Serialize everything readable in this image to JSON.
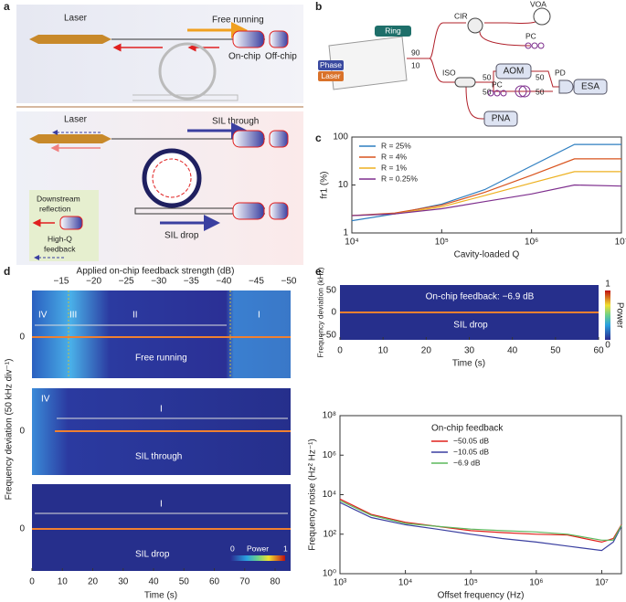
{
  "panel_labels": [
    "a",
    "b",
    "c",
    "d",
    "e"
  ],
  "panel_a": {
    "laser_top": "Laser",
    "free_running": "Free running",
    "on_chip": "On-chip",
    "off_chip": "Off-chip",
    "laser_bottom": "Laser",
    "sil_through": "SIL through",
    "sil_drop": "SIL drop",
    "inset": [
      "Downstream",
      "reflection",
      "High-Q",
      "feedback"
    ]
  },
  "panel_b": {
    "ring": "Ring",
    "phase": "Phase",
    "laser": "Laser",
    "split_90": "90",
    "split_10": "10",
    "cir": "CIR",
    "voa": "VOA",
    "pc_top": "PC",
    "iso": "ISO",
    "c1_50a": "50",
    "c1_50b": "50",
    "aom": "AOM",
    "pc_bottom": "PC",
    "c2_50a": "50",
    "c2_50b": "50",
    "pd": "PD",
    "esa": "ESA",
    "pna": "PNA"
  },
  "panel_d": {
    "top_axis_label": "Applied on-chip feedback strength (dB)",
    "top_ticks": [
      "−15",
      "−20",
      "−25",
      "−30",
      "−35",
      "−40",
      "−45",
      "−50"
    ],
    "regions_1": [
      "IV",
      "III",
      "II",
      "I"
    ],
    "regions_2": [
      "IV",
      "I"
    ],
    "regions_3": [
      "I"
    ],
    "zero": "0",
    "titles": [
      "Free running",
      "SIL through",
      "SIL drop"
    ],
    "y_label": "Frequency deviation (50 kHz div⁻¹)",
    "x_label": "Time (s)",
    "x_ticks": [
      "0",
      "10",
      "20",
      "30",
      "40",
      "50",
      "60",
      "70",
      "80"
    ],
    "colorbar": {
      "min": "0",
      "label": "Power",
      "max": "1"
    }
  },
  "panel_e_top": {
    "annotation": "On-chip feedback: −6.9 dB",
    "title": "SIL drop",
    "y_label": "Frequency deviation (kHz)",
    "y_ticks": [
      "50",
      "0",
      "−50"
    ],
    "x_label": "Time (s)",
    "x_ticks": [
      "0",
      "10",
      "20",
      "30",
      "40",
      "50",
      "60"
    ],
    "colorbar": {
      "max": "1",
      "label": "Power",
      "min": "0"
    }
  },
  "chart_data": [
    {
      "type": "line",
      "xscale": "log",
      "yscale": "log",
      "x_label": "Cavity-loaded Q",
      "y_label": "fr1 (%)",
      "x": [
        10000,
        30000,
        100000,
        300000,
        1000000,
        3000000,
        10000000
      ],
      "xlim": [
        10000,
        10000000
      ],
      "ylim": [
        1,
        100
      ],
      "xticks": [
        {
          "value": 10000,
          "label": "10⁴"
        },
        {
          "value": 100000,
          "label": "10⁵"
        },
        {
          "value": 1000000,
          "label": "10⁶"
        },
        {
          "value": 10000000,
          "label": "10⁷"
        }
      ],
      "yticks": [
        1,
        10,
        100
      ],
      "series": [
        {
          "name": "R = 25%",
          "color": "#2f7fc1",
          "values": [
            1.8,
            2.5,
            4,
            8,
            25,
            70,
            70
          ]
        },
        {
          "name": "R = 4%",
          "color": "#d9541e",
          "values": [
            2.3,
            2.6,
            3.8,
            7,
            16,
            35,
            35
          ]
        },
        {
          "name": "R = 1%",
          "color": "#edb120",
          "values": [
            2.3,
            2.5,
            3.5,
            6,
            11,
            19,
            19
          ]
        },
        {
          "name": "R = 0.25%",
          "color": "#7e2f8e",
          "values": [
            2.3,
            2.5,
            3.2,
            4.5,
            6.5,
            10,
            9.5
          ]
        }
      ]
    },
    {
      "type": "line",
      "xscale": "log",
      "yscale": "log",
      "x_label": "Offset frequency (Hz)",
      "y_label": "Frequency noise (Hz² Hz⁻¹)",
      "legend_title": "On-chip feedback",
      "x": [
        1000,
        3000,
        10000,
        30000,
        100000,
        300000,
        1000000,
        3000000,
        10000000,
        15000000,
        20000000
      ],
      "xlim": [
        1000,
        20000000
      ],
      "ylim": [
        1,
        100000000
      ],
      "xticks": [
        {
          "value": 1000,
          "label": "10³"
        },
        {
          "value": 10000,
          "label": "10⁴"
        },
        {
          "value": 100000,
          "label": "10⁵"
        },
        {
          "value": 1000000,
          "label": "10⁶"
        },
        {
          "value": 10000000,
          "label": "10⁷"
        }
      ],
      "yticks": [
        {
          "value": 1,
          "label": "10⁰"
        },
        {
          "value": 100,
          "label": "10²"
        },
        {
          "value": 10000,
          "label": "10⁴"
        },
        {
          "value": 1000000,
          "label": "10⁶"
        },
        {
          "value": 100000000,
          "label": "10⁸"
        }
      ],
      "series": [
        {
          "name": "−50.05 dB",
          "color": "#e0201b",
          "values": [
            6000,
            1000,
            400,
            250,
            150,
            120,
            100,
            90,
            40,
            60,
            300
          ]
        },
        {
          "name": "−10.05 dB",
          "color": "#3a3fa0",
          "values": [
            4000,
            700,
            300,
            180,
            100,
            60,
            40,
            25,
            15,
            40,
            250
          ]
        },
        {
          "name": "−6.9 dB",
          "color": "#5cb85c",
          "values": [
            5000,
            900,
            350,
            250,
            180,
            150,
            130,
            100,
            50,
            50,
            280
          ]
        }
      ]
    }
  ]
}
